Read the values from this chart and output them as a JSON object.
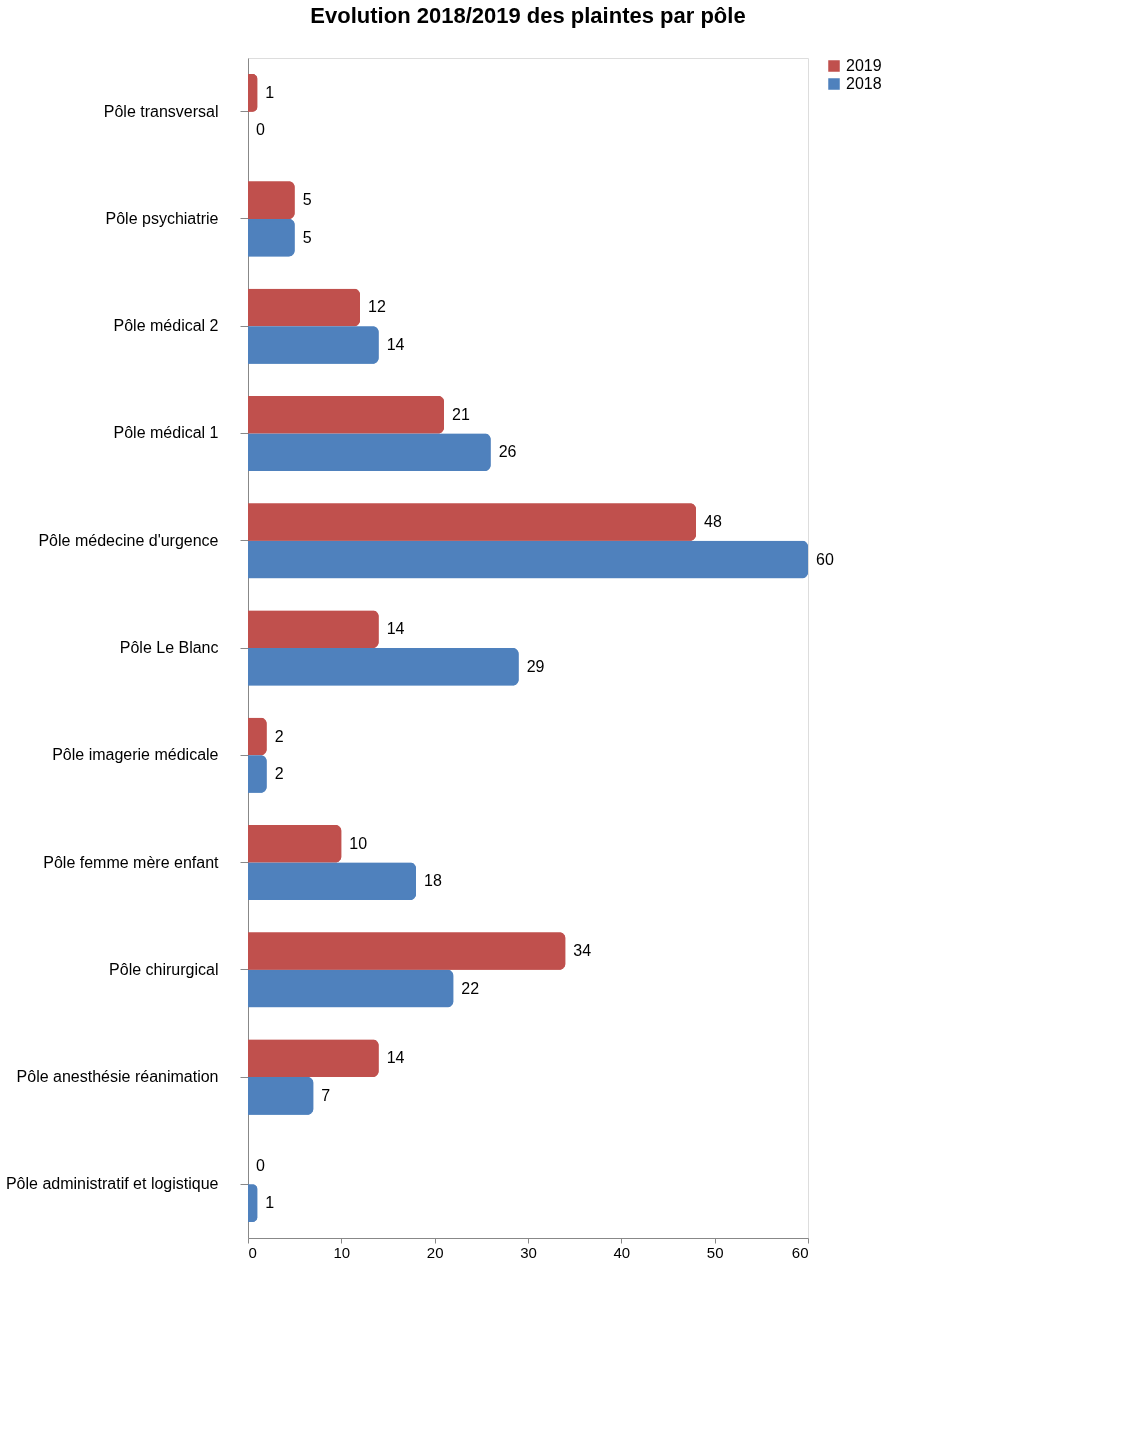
{
  "chart_data": {
    "type": "bar",
    "orientation": "horizontal",
    "title": "Evolution 2018/2019 des plaintes par pôle",
    "categories": [
      "Pôle transversal",
      "Pôle psychiatrie",
      "Pôle médical 2",
      "Pôle médical 1",
      "Pôle médecine d'urgence",
      "Pôle Le Blanc",
      "Pôle imagerie médicale",
      "Pôle femme mère enfant",
      "Pôle chirurgical",
      "Pôle anesthésie réanimation",
      "Pôle administratif et logistique"
    ],
    "series": [
      {
        "name": "2019",
        "color": "#c0504d",
        "values": [
          1,
          5,
          12,
          21,
          48,
          14,
          2,
          10,
          34,
          14,
          0
        ]
      },
      {
        "name": "2018",
        "color": "#4f81bd",
        "values": [
          0,
          5,
          14,
          26,
          60,
          29,
          2,
          18,
          22,
          7,
          1
        ]
      }
    ],
    "xlim": [
      0,
      60
    ],
    "xticks": [
      0,
      10,
      20,
      30,
      40,
      50,
      60
    ],
    "data_labels": true,
    "grid": false,
    "legend": "right"
  }
}
